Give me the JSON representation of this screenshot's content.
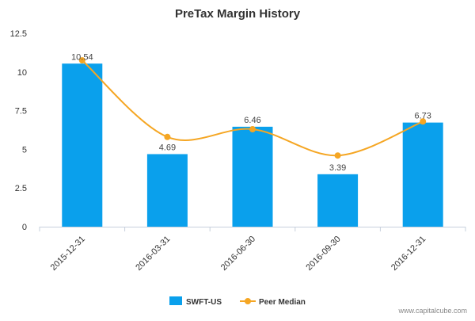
{
  "chart_data": {
    "type": "bar",
    "title": "PreTax Margin History",
    "categories": [
      "2015-12-31",
      "2016-03-31",
      "2016-06-30",
      "2016-09-30",
      "2016-12-31"
    ],
    "series": [
      {
        "name": "SWFT-US",
        "kind": "bar",
        "color": "#0aa0ec",
        "values": [
          10.54,
          4.69,
          6.46,
          3.39,
          6.73
        ],
        "labels": [
          "10.54",
          "4.69",
          "6.46",
          "3.39",
          "6.73"
        ]
      },
      {
        "name": "Peer Median",
        "kind": "line",
        "color": "#f5a623",
        "values": [
          10.75,
          5.8,
          6.3,
          4.6,
          6.8
        ]
      }
    ],
    "yticks": [
      "0",
      "2.5",
      "5",
      "7.5",
      "10",
      "12.5"
    ],
    "ylim": [
      0,
      12.5
    ],
    "grid": false,
    "legend_position": "bottom-center"
  },
  "watermark": "www.capitalcube.com"
}
